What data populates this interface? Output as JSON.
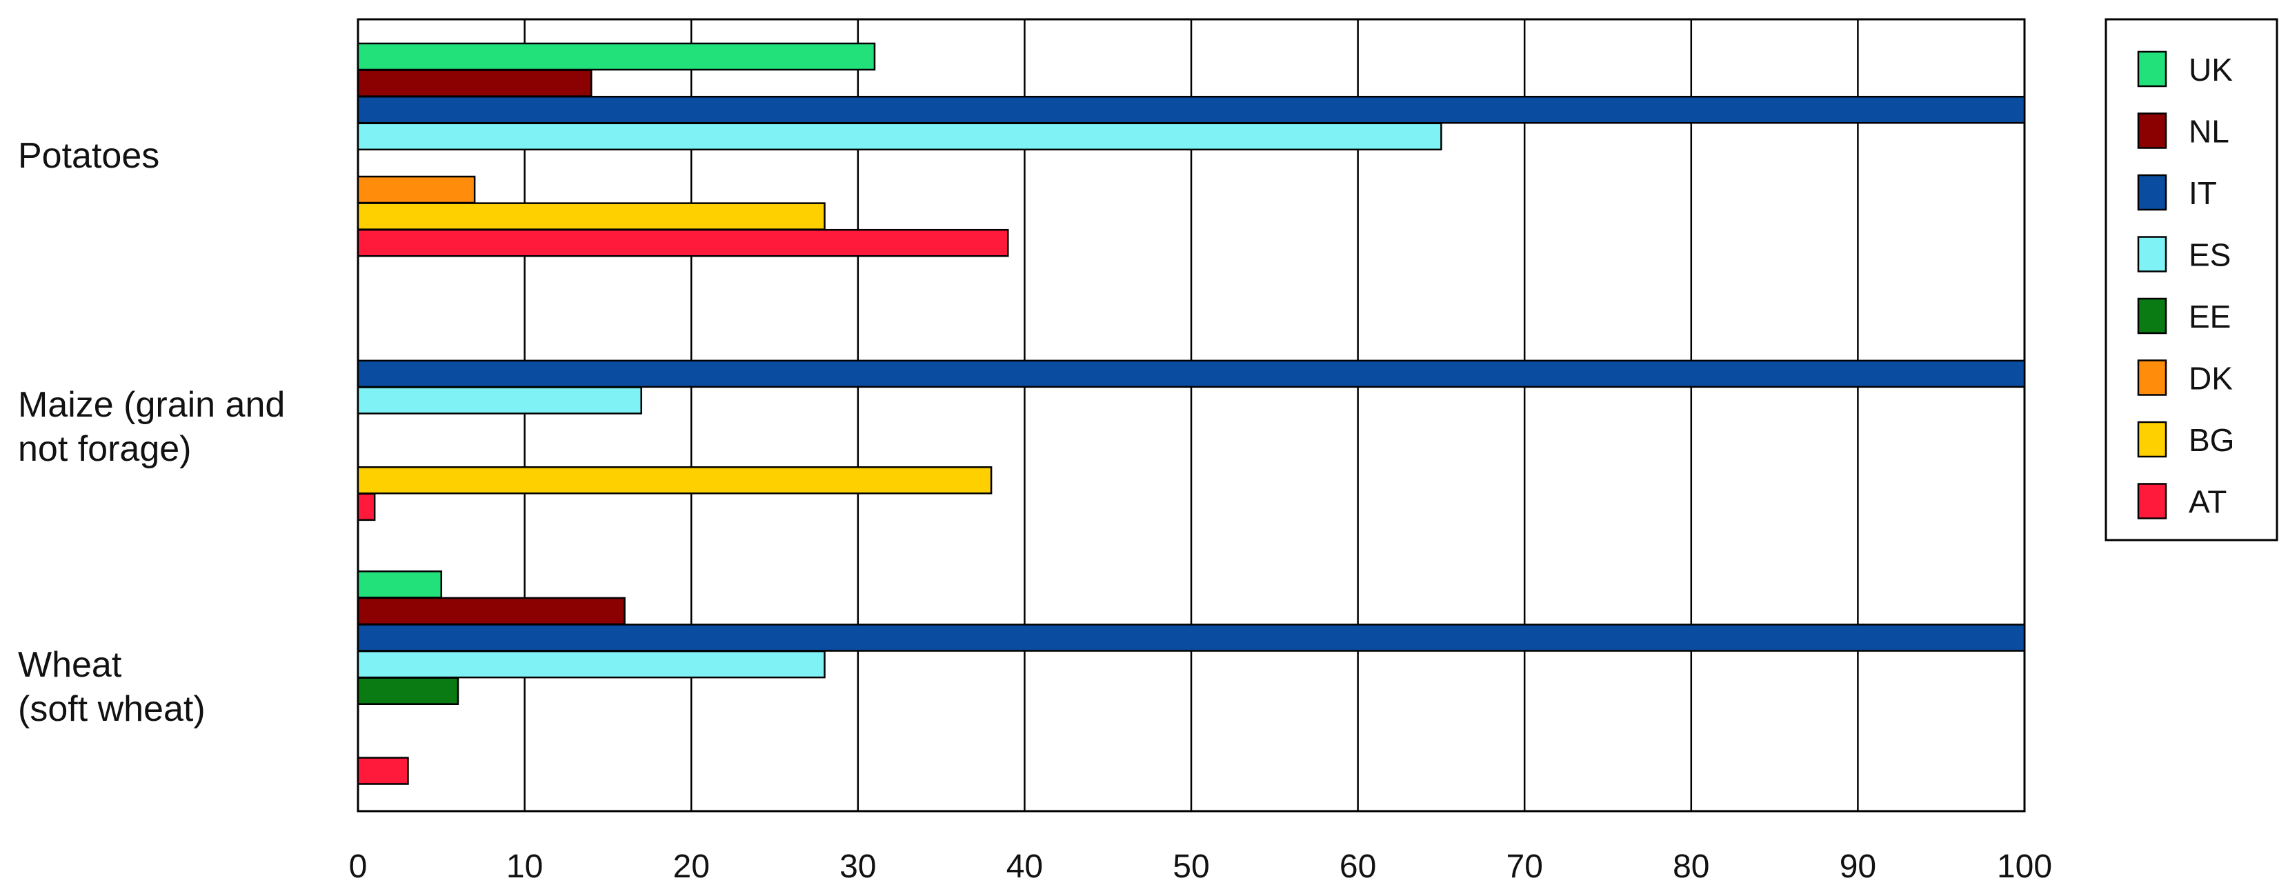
{
  "chart_data": {
    "type": "bar",
    "orientation": "horizontal",
    "categories": [
      "Potatoes",
      "Maize (grain and not forage)",
      "Wheat (soft wheat)"
    ],
    "category_label_lines": [
      [
        "Potatoes"
      ],
      [
        "Maize (grain and",
        "not forage)"
      ],
      [
        "Wheat",
        "(soft wheat)"
      ]
    ],
    "series": [
      {
        "name": "UK",
        "color": "#22E07A",
        "values": [
          31,
          null,
          5
        ]
      },
      {
        "name": "NL",
        "color": "#8B0000",
        "values": [
          14,
          null,
          16
        ]
      },
      {
        "name": "IT",
        "color": "#0A4DA0",
        "values": [
          100,
          100,
          100
        ]
      },
      {
        "name": "ES",
        "color": "#7EF2F5",
        "values": [
          65,
          17,
          28
        ]
      },
      {
        "name": "EE",
        "color": "#0A7A12",
        "values": [
          null,
          null,
          6
        ]
      },
      {
        "name": "DK",
        "color": "#FF8C0A",
        "values": [
          7,
          null,
          null
        ]
      },
      {
        "name": "BG",
        "color": "#FFD000",
        "values": [
          28,
          38,
          null
        ]
      },
      {
        "name": "AT",
        "color": "#FF1A3C",
        "values": [
          39,
          1,
          3
        ]
      }
    ],
    "xlim": [
      0,
      100
    ],
    "xticks": [
      0,
      10,
      20,
      30,
      40,
      50,
      60,
      70,
      80,
      90,
      100
    ],
    "title": "",
    "xlabel": "",
    "ylabel": "",
    "grid": "vertical",
    "legend": "right"
  }
}
